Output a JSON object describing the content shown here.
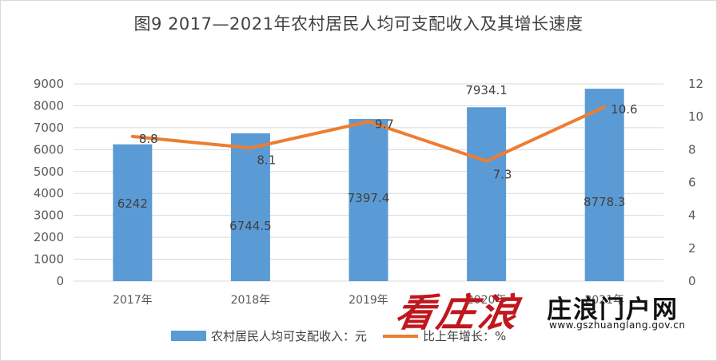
{
  "chart_data": {
    "type": "bar+line",
    "title": "图9    2017—2021年农村居民人均可支配收入及其增长速度",
    "categories": [
      "2017年",
      "2018年",
      "2019年",
      "2020年",
      "2021年"
    ],
    "series": [
      {
        "name": "农村居民人均可支配收入：元",
        "type": "bar",
        "axis": "left",
        "values": [
          6242,
          6744.5,
          7397.4,
          7934.1,
          8778.3
        ],
        "labels": [
          "6242",
          "6744.5",
          "7397.4",
          "7934.1",
          "8778.3"
        ],
        "color": "#5b9bd5"
      },
      {
        "name": "比上年增长：%",
        "type": "line",
        "axis": "right",
        "values": [
          8.8,
          8.1,
          9.7,
          7.3,
          10.6
        ],
        "labels": [
          "8.8",
          "8.1",
          "9.7",
          "7.3",
          "10.6"
        ],
        "color": "#ed7d31"
      }
    ],
    "y_left": {
      "min": 0,
      "max": 9000,
      "ticks": [
        "0",
        "1000",
        "2000",
        "3000",
        "4000",
        "5000",
        "6000",
        "7000",
        "8000",
        "9000"
      ]
    },
    "y_right": {
      "min": 0,
      "max": 12,
      "ticks": [
        "0",
        "2",
        "4",
        "6",
        "8",
        "10",
        "12"
      ]
    },
    "grid": true,
    "legend": "bottom"
  },
  "watermark": {
    "brand": "看庄浪",
    "name": "庄浪门户网",
    "url": "www.gszhuanglang.gov.cn"
  }
}
